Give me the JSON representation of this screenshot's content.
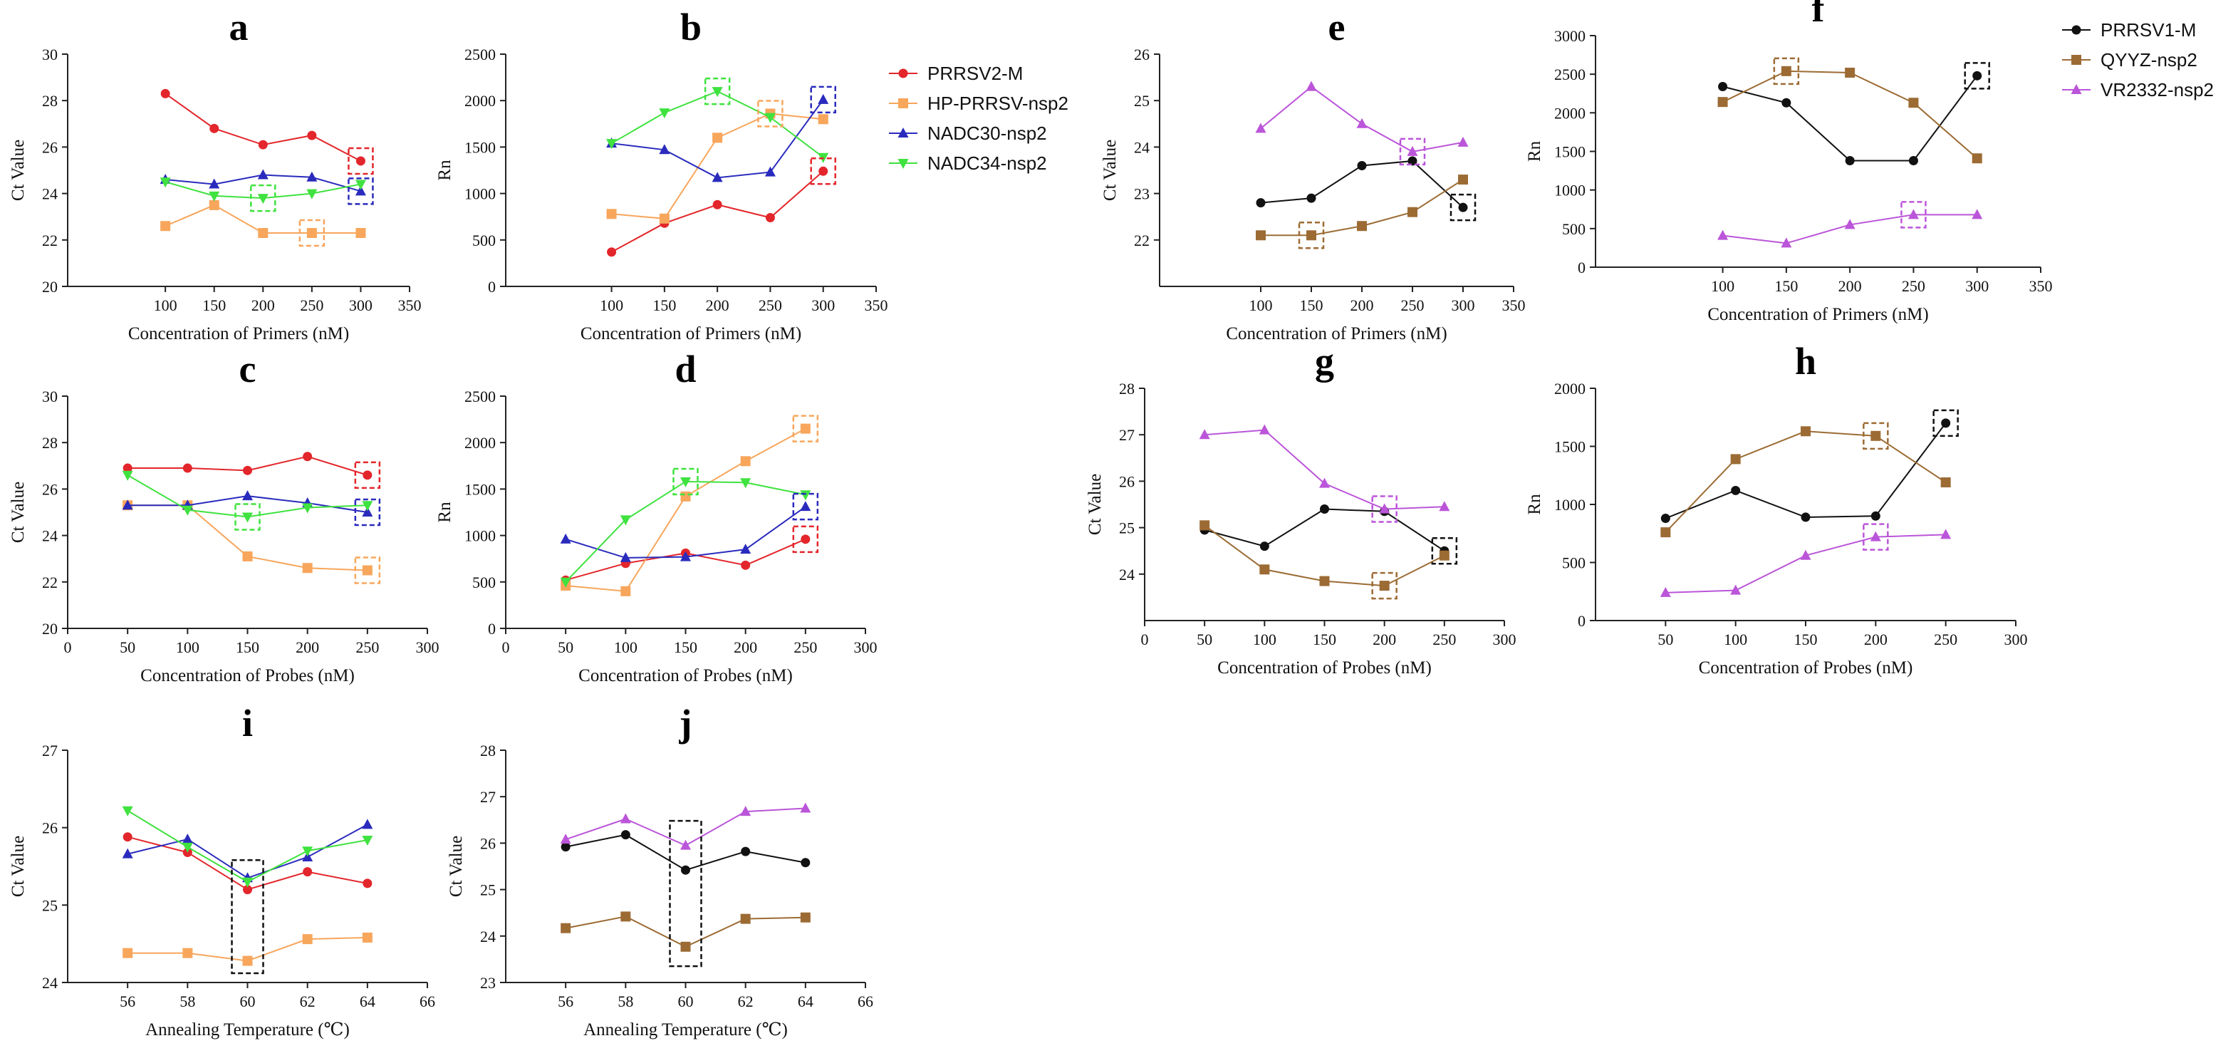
{
  "colors": {
    "PRRSV2-M": "#e3262b",
    "HP-PRRSV-nsp2": "#f7a65c",
    "NADC30-nsp2": "#2a2bbd",
    "NADC34-nsp2": "#3fe23f",
    "PRRSV1-M": "#111111",
    "QYYZ-nsp2": "#9c6b34",
    "VR2332-nsp2": "#bb55d9"
  },
  "markers": {
    "PRRSV2-M": "circle",
    "HP-PRRSV-nsp2": "square",
    "NADC30-nsp2": "triangle-up",
    "NADC34-nsp2": "triangle-down",
    "PRRSV1-M": "circle",
    "QYYZ-nsp2": "square",
    "VR2332-nsp2": "triangle-up"
  },
  "legends": [
    {
      "entries": [
        "PRRSV2-M",
        "HP-PRRSV-nsp2",
        "NADC30-nsp2",
        "NADC34-nsp2"
      ]
    },
    {
      "entries": [
        "PRRSV1-M",
        "QYYZ-nsp2",
        "VR2332-nsp2"
      ]
    }
  ],
  "chart_data": [
    {
      "panel": "a",
      "type": "line",
      "xlabel": "Concentration of Primers (nM)",
      "ylabel": "Ct Value",
      "xlim": [
        0,
        350
      ],
      "xticks": [
        100,
        150,
        200,
        250,
        300,
        350
      ],
      "ylim": [
        20,
        30
      ],
      "yticks": [
        20,
        22,
        24,
        26,
        28,
        30
      ],
      "x": [
        100,
        150,
        200,
        250,
        300
      ],
      "series": [
        {
          "name": "PRRSV2-M",
          "values": [
            28.3,
            26.8,
            26.1,
            26.5,
            25.4
          ]
        },
        {
          "name": "HP-PRRSV-nsp2",
          "values": [
            22.6,
            23.5,
            22.3,
            22.3,
            22.3
          ]
        },
        {
          "name": "NADC30-nsp2",
          "values": [
            24.6,
            24.4,
            24.8,
            24.7,
            24.1
          ]
        },
        {
          "name": "NADC34-nsp2",
          "values": [
            24.5,
            23.9,
            23.8,
            24.0,
            24.4
          ]
        }
      ],
      "highlights": [
        {
          "series": "PRRSV2-M",
          "x": 300
        },
        {
          "series": "HP-PRRSV-nsp2",
          "x": 250
        },
        {
          "series": "NADC30-nsp2",
          "x": 300
        },
        {
          "series": "NADC34-nsp2",
          "x": 200
        }
      ]
    },
    {
      "panel": "b",
      "type": "line",
      "xlabel": "Concentration of Primers (nM)",
      "ylabel": "Rn",
      "xlim": [
        0,
        350
      ],
      "xticks": [
        100,
        150,
        200,
        250,
        300,
        350
      ],
      "ylim": [
        0,
        2500
      ],
      "yticks": [
        0,
        500,
        1000,
        1500,
        2000,
        2500
      ],
      "x": [
        100,
        150,
        200,
        250,
        300
      ],
      "series": [
        {
          "name": "PRRSV2-M",
          "values": [
            370,
            680,
            880,
            740,
            1240
          ]
        },
        {
          "name": "HP-PRRSV-nsp2",
          "values": [
            780,
            730,
            1600,
            1860,
            1800
          ]
        },
        {
          "name": "NADC30-nsp2",
          "values": [
            1540,
            1470,
            1170,
            1230,
            2010
          ]
        },
        {
          "name": "NADC34-nsp2",
          "values": [
            1540,
            1870,
            2100,
            1820,
            1390
          ]
        }
      ],
      "highlights": [
        {
          "series": "PRRSV2-M",
          "x": 300
        },
        {
          "series": "HP-PRRSV-nsp2",
          "x": 250
        },
        {
          "series": "NADC30-nsp2",
          "x": 300
        },
        {
          "series": "NADC34-nsp2",
          "x": 200
        }
      ]
    },
    {
      "panel": "c",
      "type": "line",
      "xlabel": "Concentration of Probes (nM)",
      "ylabel": "Ct Value",
      "xlim": [
        0,
        300
      ],
      "xticks": [
        0,
        50,
        100,
        150,
        200,
        250,
        300
      ],
      "ylim": [
        20,
        30
      ],
      "yticks": [
        20,
        22,
        24,
        26,
        28,
        30
      ],
      "x": [
        50,
        100,
        150,
        200,
        250
      ],
      "series": [
        {
          "name": "PRRSV2-M",
          "values": [
            26.9,
            26.9,
            26.8,
            27.4,
            26.6
          ]
        },
        {
          "name": "HP-PRRSV-nsp2",
          "values": [
            25.3,
            25.3,
            23.1,
            22.6,
            22.5
          ]
        },
        {
          "name": "NADC30-nsp2",
          "values": [
            25.3,
            25.3,
            25.7,
            25.4,
            25.0
          ]
        },
        {
          "name": "NADC34-nsp2",
          "values": [
            26.6,
            25.1,
            24.8,
            25.2,
            25.3
          ]
        }
      ],
      "highlights": [
        {
          "series": "PRRSV2-M",
          "x": 250
        },
        {
          "series": "HP-PRRSV-nsp2",
          "x": 250
        },
        {
          "series": "NADC30-nsp2",
          "x": 250
        },
        {
          "series": "NADC34-nsp2",
          "x": 150
        }
      ]
    },
    {
      "panel": "d",
      "type": "line",
      "xlabel": "Concentration of Probes (nM)",
      "ylabel": "Rn",
      "xlim": [
        0,
        300
      ],
      "xticks": [
        0,
        50,
        100,
        150,
        200,
        250,
        300
      ],
      "ylim": [
        0,
        2500
      ],
      "yticks": [
        0,
        500,
        1000,
        1500,
        2000,
        2500
      ],
      "x": [
        50,
        100,
        150,
        200,
        250
      ],
      "series": [
        {
          "name": "PRRSV2-M",
          "values": [
            520,
            700,
            810,
            680,
            960
          ]
        },
        {
          "name": "HP-PRRSV-nsp2",
          "values": [
            460,
            400,
            1420,
            1800,
            2150
          ]
        },
        {
          "name": "NADC30-nsp2",
          "values": [
            960,
            760,
            770,
            850,
            1310
          ]
        },
        {
          "name": "NADC34-nsp2",
          "values": [
            500,
            1170,
            1580,
            1570,
            1440
          ]
        }
      ],
      "highlights": [
        {
          "series": "PRRSV2-M",
          "x": 250
        },
        {
          "series": "HP-PRRSV-nsp2",
          "x": 250
        },
        {
          "series": "NADC30-nsp2",
          "x": 250
        },
        {
          "series": "NADC34-nsp2",
          "x": 150
        }
      ]
    },
    {
      "panel": "e",
      "type": "line",
      "xlabel": "Concentration of Primers (nM)",
      "ylabel": "Ct Value",
      "xlim": [
        0,
        350
      ],
      "xticks": [
        100,
        150,
        200,
        250,
        300,
        350
      ],
      "ylim": [
        21,
        26
      ],
      "yticks": [
        22,
        23,
        24,
        25,
        26
      ],
      "x": [
        100,
        150,
        200,
        250,
        300
      ],
      "series": [
        {
          "name": "PRRSV1-M",
          "values": [
            22.8,
            22.9,
            23.6,
            23.7,
            22.7
          ]
        },
        {
          "name": "QYYZ-nsp2",
          "values": [
            22.1,
            22.1,
            22.3,
            22.6,
            23.3
          ]
        },
        {
          "name": "VR2332-nsp2",
          "values": [
            24.4,
            25.3,
            24.5,
            23.9,
            24.1
          ]
        }
      ],
      "highlights": [
        {
          "series": "PRRSV1-M",
          "x": 300
        },
        {
          "series": "QYYZ-nsp2",
          "x": 150
        },
        {
          "series": "VR2332-nsp2",
          "x": 250
        }
      ]
    },
    {
      "panel": "f",
      "type": "line",
      "xlabel": "Concentration of Primers (nM)",
      "ylabel": "Rn",
      "xlim": [
        0,
        350
      ],
      "xticks": [
        100,
        150,
        200,
        250,
        300,
        350
      ],
      "ylim": [
        0,
        3000
      ],
      "yticks": [
        0,
        500,
        1000,
        1500,
        2000,
        2500,
        3000
      ],
      "x": [
        100,
        150,
        200,
        250,
        300
      ],
      "series": [
        {
          "name": "PRRSV1-M",
          "values": [
            2340,
            2130,
            1380,
            1380,
            2480
          ]
        },
        {
          "name": "QYYZ-nsp2",
          "values": [
            2140,
            2540,
            2520,
            2130,
            1410
          ]
        },
        {
          "name": "VR2332-nsp2",
          "values": [
            410,
            310,
            550,
            680,
            680
          ]
        }
      ],
      "highlights": [
        {
          "series": "PRRSV1-M",
          "x": 300
        },
        {
          "series": "QYYZ-nsp2",
          "x": 150
        },
        {
          "series": "VR2332-nsp2",
          "x": 250
        }
      ]
    },
    {
      "panel": "g",
      "type": "line",
      "xlabel": "Concentration of Probes (nM)",
      "ylabel": "Ct Value",
      "xlim": [
        0,
        300
      ],
      "xticks": [
        0,
        50,
        100,
        150,
        200,
        250,
        300
      ],
      "ylim": [
        23,
        28
      ],
      "yticks": [
        24,
        25,
        26,
        27,
        28
      ],
      "x": [
        50,
        100,
        150,
        200,
        250
      ],
      "series": [
        {
          "name": "PRRSV1-M",
          "values": [
            24.95,
            24.6,
            25.4,
            25.35,
            24.5
          ]
        },
        {
          "name": "QYYZ-nsp2",
          "values": [
            25.05,
            24.1,
            23.85,
            23.75,
            24.4
          ]
        },
        {
          "name": "VR2332-nsp2",
          "values": [
            27.0,
            27.1,
            25.95,
            25.4,
            25.45
          ]
        }
      ],
      "highlights": [
        {
          "series": "PRRSV1-M",
          "x": 250
        },
        {
          "series": "QYYZ-nsp2",
          "x": 200
        },
        {
          "series": "VR2332-nsp2",
          "x": 200
        }
      ]
    },
    {
      "panel": "h",
      "type": "line",
      "xlabel": "Concentration of Probes (nM)",
      "ylabel": "Rn",
      "xlim": [
        0,
        300
      ],
      "xticks": [
        50,
        100,
        150,
        200,
        250,
        300
      ],
      "ylim": [
        0,
        2000
      ],
      "yticks": [
        0,
        500,
        1000,
        1500,
        2000
      ],
      "x": [
        50,
        100,
        150,
        200,
        250
      ],
      "series": [
        {
          "name": "PRRSV1-M",
          "values": [
            880,
            1120,
            890,
            900,
            1700
          ]
        },
        {
          "name": "QYYZ-nsp2",
          "values": [
            760,
            1390,
            1630,
            1590,
            1190
          ]
        },
        {
          "name": "VR2332-nsp2",
          "values": [
            240,
            260,
            560,
            720,
            740
          ]
        }
      ],
      "highlights": [
        {
          "series": "PRRSV1-M",
          "x": 250
        },
        {
          "series": "QYYZ-nsp2",
          "x": 200
        },
        {
          "series": "VR2332-nsp2",
          "x": 200
        }
      ]
    },
    {
      "panel": "i",
      "type": "line",
      "xlabel": "Annealing Temperature (℃)",
      "ylabel": "Ct Value",
      "xlim": [
        54,
        66
      ],
      "xticks": [
        56,
        58,
        60,
        62,
        64,
        66
      ],
      "ylim": [
        24,
        27
      ],
      "yticks": [
        24,
        25,
        26,
        27
      ],
      "x": [
        56,
        58,
        60,
        62,
        64
      ],
      "series": [
        {
          "name": "PRRSV2-M",
          "values": [
            25.88,
            25.68,
            25.2,
            25.43,
            25.28
          ]
        },
        {
          "name": "HP-PRRSV-nsp2",
          "values": [
            24.38,
            24.38,
            24.28,
            24.56,
            24.58
          ]
        },
        {
          "name": "NADC30-nsp2",
          "values": [
            25.66,
            25.85,
            25.35,
            25.62,
            26.04
          ]
        },
        {
          "name": "NADC34-nsp2",
          "values": [
            26.22,
            25.75,
            25.3,
            25.7,
            25.84
          ]
        }
      ],
      "highlight_column": {
        "x": 60,
        "range": [
          24.12,
          25.58
        ]
      }
    },
    {
      "panel": "j",
      "type": "line",
      "xlabel": "Annealing Temperature (℃)",
      "ylabel": "Ct Value",
      "xlim": [
        54,
        66
      ],
      "xticks": [
        56,
        58,
        60,
        62,
        64,
        66
      ],
      "ylim": [
        23,
        28
      ],
      "yticks": [
        23,
        24,
        25,
        26,
        27,
        28
      ],
      "x": [
        56,
        58,
        60,
        62,
        64
      ],
      "series": [
        {
          "name": "PRRSV1-M",
          "values": [
            25.92,
            26.18,
            25.42,
            25.82,
            25.58
          ]
        },
        {
          "name": "QYYZ-nsp2",
          "values": [
            24.17,
            24.42,
            23.77,
            24.37,
            24.4
          ]
        },
        {
          "name": "VR2332-nsp2",
          "values": [
            26.08,
            26.52,
            25.95,
            26.68,
            26.75
          ]
        }
      ],
      "highlight_column": {
        "x": 60,
        "range": [
          23.35,
          26.48
        ]
      }
    }
  ]
}
